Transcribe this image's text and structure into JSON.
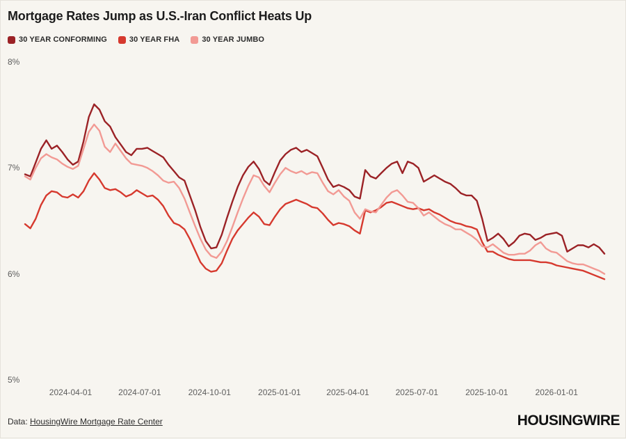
{
  "header": {
    "title": "Mortgage Rates Jump as U.S.-Iran Conflict Heats Up"
  },
  "footer": {
    "source_prefix": "Data: ",
    "source_link": "HousingWire Mortgage Rate Center",
    "logo": "HOUSINGWIRE"
  },
  "colors": {
    "background": "#f7f5f0",
    "conforming": "#9b2226",
    "fha": "#d6392e",
    "jumbo": "#f29a94"
  },
  "chart_data": {
    "type": "line",
    "title": "Mortgage Rates Jump as U.S.-Iran Conflict Heats Up",
    "xlabel": "",
    "ylabel": "",
    "ylim": [
      5,
      8
    ],
    "grid": false,
    "legend_position": "top-left",
    "x_start_date": "2024-02-01",
    "x_interval_days": 7,
    "y_ticks": [
      {
        "value": 8,
        "label": "8%"
      },
      {
        "value": 7,
        "label": "7%"
      },
      {
        "value": 6,
        "label": "6%"
      },
      {
        "value": 5,
        "label": "5%"
      }
    ],
    "x_ticks": [
      "2024-04-01",
      "2024-07-01",
      "2024-10-01",
      "2025-01-01",
      "2025-04-01",
      "2025-07-01",
      "2025-10-01",
      "2026-01-01"
    ],
    "series": [
      {
        "name": "30 YEAR CONFORMING",
        "color": "#9b2226",
        "values": [
          6.94,
          6.92,
          7.05,
          7.18,
          7.26,
          7.18,
          7.21,
          7.15,
          7.08,
          7.03,
          7.06,
          7.25,
          7.48,
          7.6,
          7.55,
          7.44,
          7.39,
          7.29,
          7.22,
          7.15,
          7.12,
          7.18,
          7.18,
          7.19,
          7.16,
          7.13,
          7.1,
          7.03,
          6.97,
          6.91,
          6.88,
          6.74,
          6.6,
          6.44,
          6.31,
          6.24,
          6.25,
          6.37,
          6.53,
          6.68,
          6.82,
          6.93,
          7.01,
          7.06,
          6.99,
          6.88,
          6.84,
          6.96,
          7.07,
          7.13,
          7.17,
          7.19,
          7.15,
          7.17,
          7.14,
          7.11,
          7.0,
          6.89,
          6.82,
          6.84,
          6.82,
          6.79,
          6.73,
          6.71,
          6.98,
          6.92,
          6.9,
          6.95,
          7.0,
          7.04,
          7.06,
          6.95,
          7.06,
          7.04,
          7.0,
          6.87,
          6.9,
          6.93,
          6.9,
          6.87,
          6.85,
          6.81,
          6.76,
          6.74,
          6.74,
          6.69,
          6.52,
          6.31,
          6.34,
          6.38,
          6.33,
          6.26,
          6.3,
          6.36,
          6.38,
          6.37,
          6.32,
          6.34,
          6.37,
          6.38,
          6.39,
          6.36,
          6.21,
          6.24,
          6.27,
          6.27,
          6.25,
          6.28,
          6.25,
          6.19
        ]
      },
      {
        "name": "30 YEAR FHA",
        "color": "#d6392e",
        "values": [
          6.47,
          6.43,
          6.52,
          6.65,
          6.74,
          6.78,
          6.77,
          6.73,
          6.72,
          6.75,
          6.72,
          6.78,
          6.88,
          6.95,
          6.89,
          6.81,
          6.79,
          6.8,
          6.77,
          6.73,
          6.75,
          6.79,
          6.76,
          6.73,
          6.74,
          6.7,
          6.64,
          6.55,
          6.48,
          6.46,
          6.42,
          6.33,
          6.22,
          6.11,
          6.05,
          6.02,
          6.03,
          6.1,
          6.22,
          6.33,
          6.41,
          6.47,
          6.53,
          6.58,
          6.54,
          6.47,
          6.46,
          6.54,
          6.61,
          6.66,
          6.68,
          6.7,
          6.68,
          6.66,
          6.63,
          6.62,
          6.57,
          6.51,
          6.46,
          6.48,
          6.47,
          6.45,
          6.41,
          6.38,
          6.6,
          6.58,
          6.6,
          6.63,
          6.67,
          6.68,
          6.66,
          6.64,
          6.62,
          6.61,
          6.62,
          6.6,
          6.61,
          6.58,
          6.56,
          6.53,
          6.5,
          6.48,
          6.47,
          6.45,
          6.44,
          6.42,
          6.3,
          6.21,
          6.21,
          6.18,
          6.16,
          6.14,
          6.13,
          6.13,
          6.13,
          6.13,
          6.12,
          6.11,
          6.11,
          6.1,
          6.08,
          6.07,
          6.06,
          6.05,
          6.04,
          6.03,
          6.01,
          5.99,
          5.97,
          5.95
        ]
      },
      {
        "name": "30 YEAR JUMBO",
        "color": "#f29a94",
        "values": [
          6.92,
          6.89,
          7.0,
          7.09,
          7.13,
          7.1,
          7.08,
          7.04,
          7.01,
          6.99,
          7.02,
          7.18,
          7.34,
          7.41,
          7.35,
          7.2,
          7.15,
          7.23,
          7.16,
          7.09,
          7.04,
          7.03,
          7.02,
          7.0,
          6.97,
          6.93,
          6.88,
          6.86,
          6.87,
          6.81,
          6.71,
          6.58,
          6.45,
          6.33,
          6.23,
          6.17,
          6.15,
          6.21,
          6.31,
          6.44,
          6.58,
          6.71,
          6.83,
          6.93,
          6.91,
          6.83,
          6.77,
          6.86,
          6.94,
          7.0,
          6.97,
          6.95,
          6.97,
          6.94,
          6.96,
          6.95,
          6.86,
          6.78,
          6.75,
          6.79,
          6.73,
          6.69,
          6.58,
          6.52,
          6.61,
          6.59,
          6.58,
          6.65,
          6.72,
          6.77,
          6.79,
          6.74,
          6.68,
          6.67,
          6.62,
          6.55,
          6.58,
          6.54,
          6.5,
          6.47,
          6.45,
          6.42,
          6.42,
          6.39,
          6.36,
          6.32,
          6.26,
          6.25,
          6.28,
          6.24,
          6.2,
          6.18,
          6.18,
          6.19,
          6.19,
          6.22,
          6.27,
          6.3,
          6.24,
          6.21,
          6.2,
          6.16,
          6.12,
          6.1,
          6.09,
          6.09,
          6.07,
          6.05,
          6.03,
          6.0
        ]
      }
    ]
  }
}
